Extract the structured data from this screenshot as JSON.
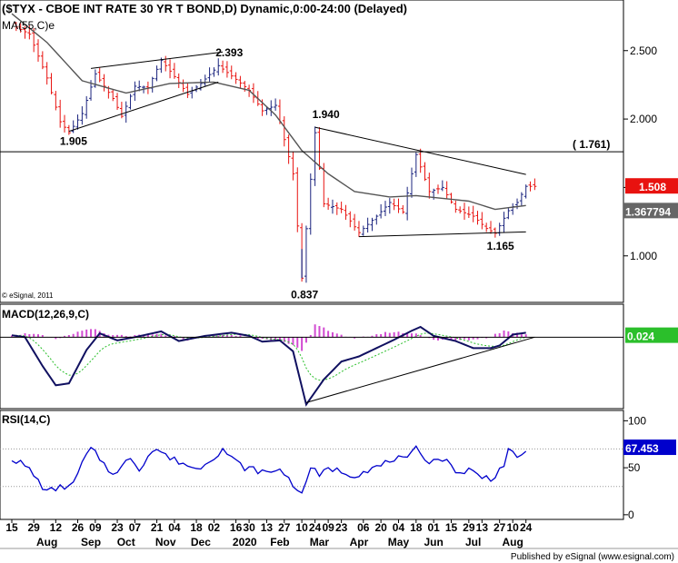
{
  "chart_data": [
    {
      "type": "candlestick",
      "title": "($TYX - CBOE INT RATE 30 YR T BOND,D) Dynamic,0:00-24:00 (Delayed)",
      "ylim": [
        0.66,
        2.87
      ],
      "y_ticks": [
        {
          "v": 2.5,
          "label": "2.500"
        },
        {
          "v": 2.0,
          "label": "2.000"
        },
        {
          "v": 1.5,
          "label": "1.500"
        },
        {
          "v": 1.0,
          "label": "1.000"
        }
      ],
      "ma_label": "MA(55,C)e",
      "watermark": "© eSignal, 2011",
      "last_price": {
        "value": 1.508,
        "label": "1.508",
        "color": "#e8120f"
      },
      "ma_last": {
        "value": 1.367794,
        "label": "1.367794",
        "color": "#666666"
      },
      "resistance_level": {
        "value": 1.761,
        "label": "( 1.761)"
      },
      "annotations": [
        {
          "text": "2.393",
          "index": 47,
          "value": 2.393
        },
        {
          "text": "1.905",
          "index": 13,
          "value": 1.905
        },
        {
          "text": "1.940",
          "index": 69,
          "value": 1.94
        },
        {
          "text": "0.837",
          "index": 66,
          "value": 0.837
        },
        {
          "text": "1.165",
          "index": 111,
          "value": 1.165
        }
      ],
      "trendlines": [
        {
          "from": {
            "index": 13,
            "value": 1.91
          },
          "to": {
            "index": 47,
            "value": 2.27
          }
        },
        {
          "from": {
            "index": 18,
            "value": 2.37
          },
          "to": {
            "index": 48,
            "value": 2.49
          }
        },
        {
          "from": {
            "index": 69,
            "value": 1.94
          },
          "to": {
            "index": 117,
            "value": 1.595
          }
        },
        {
          "from": {
            "index": 79,
            "value": 1.14
          },
          "to": {
            "index": 117,
            "value": 1.175
          }
        }
      ],
      "anchors": [
        [
          0,
          2.69
        ],
        [
          4,
          2.62
        ],
        [
          8,
          2.3
        ],
        [
          11,
          1.98
        ],
        [
          13,
          1.9
        ],
        [
          16,
          2.04
        ],
        [
          19,
          2.33
        ],
        [
          23,
          2.15
        ],
        [
          25,
          2.02
        ],
        [
          28,
          2.24
        ],
        [
          31,
          2.23
        ],
        [
          34,
          2.43
        ],
        [
          37,
          2.31
        ],
        [
          40,
          2.18
        ],
        [
          43,
          2.26
        ],
        [
          47,
          2.39
        ],
        [
          51,
          2.29
        ],
        [
          54,
          2.21
        ],
        [
          57,
          2.06
        ],
        [
          60,
          2.1
        ],
        [
          64,
          1.6
        ],
        [
          66,
          0.837
        ],
        [
          68,
          1.56
        ],
        [
          69,
          1.9
        ],
        [
          71,
          1.38
        ],
        [
          75,
          1.34
        ],
        [
          79,
          1.17
        ],
        [
          83,
          1.29
        ],
        [
          86,
          1.39
        ],
        [
          89,
          1.32
        ],
        [
          92,
          1.74
        ],
        [
          95,
          1.47
        ],
        [
          98,
          1.5
        ],
        [
          101,
          1.34
        ],
        [
          105,
          1.29
        ],
        [
          108,
          1.2
        ],
        [
          110,
          1.165
        ],
        [
          113,
          1.33
        ],
        [
          115,
          1.39
        ],
        [
          117,
          1.508
        ]
      ],
      "ma_anchors": [
        [
          0,
          2.77
        ],
        [
          8,
          2.56
        ],
        [
          16,
          2.28
        ],
        [
          26,
          2.19
        ],
        [
          36,
          2.26
        ],
        [
          46,
          2.27
        ],
        [
          54,
          2.21
        ],
        [
          60,
          2.03
        ],
        [
          66,
          1.77
        ],
        [
          72,
          1.6
        ],
        [
          78,
          1.47
        ],
        [
          86,
          1.43
        ],
        [
          92,
          1.44
        ],
        [
          98,
          1.42
        ],
        [
          104,
          1.4
        ],
        [
          110,
          1.34
        ],
        [
          117,
          1.368
        ]
      ]
    },
    {
      "type": "line",
      "title": "MACD(12,26,9,C)",
      "ylim": [
        -1.1,
        0.5
      ],
      "last": {
        "value": 0.024,
        "label": "0.024",
        "color": "#2bbf2b"
      },
      "macd_anchors": [
        [
          0,
          0.03
        ],
        [
          3,
          0.0
        ],
        [
          7,
          -0.45
        ],
        [
          10,
          -0.75
        ],
        [
          13,
          -0.72
        ],
        [
          17,
          -0.2
        ],
        [
          20,
          0.06
        ],
        [
          24,
          -0.05
        ],
        [
          28,
          0.0
        ],
        [
          34,
          0.09
        ],
        [
          38,
          -0.06
        ],
        [
          44,
          0.02
        ],
        [
          50,
          0.07
        ],
        [
          54,
          0.02
        ],
        [
          57,
          -0.07
        ],
        [
          61,
          -0.05
        ],
        [
          64,
          -0.22
        ],
        [
          67,
          -1.05
        ],
        [
          71,
          -0.66
        ],
        [
          75,
          -0.38
        ],
        [
          79,
          -0.3
        ],
        [
          83,
          -0.17
        ],
        [
          87,
          -0.04
        ],
        [
          91,
          0.1
        ],
        [
          93,
          0.16
        ],
        [
          96,
          0.02
        ],
        [
          101,
          -0.06
        ],
        [
          105,
          -0.17
        ],
        [
          109,
          -0.17
        ],
        [
          111,
          -0.13
        ],
        [
          114,
          0.04
        ],
        [
          117,
          0.07
        ]
      ],
      "hist_anchors": [
        [
          0,
          0.04
        ],
        [
          5,
          0.06
        ],
        [
          10,
          -0.04
        ],
        [
          15,
          0.08
        ],
        [
          18,
          0.14
        ],
        [
          22,
          0.03
        ],
        [
          28,
          0.02
        ],
        [
          34,
          0.05
        ],
        [
          40,
          -0.04
        ],
        [
          46,
          0.04
        ],
        [
          52,
          0.02
        ],
        [
          58,
          -0.04
        ],
        [
          62,
          -0.06
        ],
        [
          64,
          -0.13
        ],
        [
          66,
          -0.22
        ],
        [
          68,
          0.02
        ],
        [
          69,
          0.2
        ],
        [
          71,
          0.14
        ],
        [
          74,
          0.06
        ],
        [
          78,
          -0.03
        ],
        [
          82,
          0.03
        ],
        [
          86,
          0.08
        ],
        [
          90,
          0.07
        ],
        [
          93,
          0.04
        ],
        [
          96,
          -0.04
        ],
        [
          100,
          -0.05
        ],
        [
          104,
          -0.04
        ],
        [
          108,
          -0.01
        ],
        [
          112,
          0.1
        ],
        [
          115,
          0.06
        ],
        [
          117,
          0.05
        ]
      ],
      "trendline": {
        "from": {
          "index": 67,
          "value": -1.02
        },
        "to": {
          "index": 119,
          "value": 0.0
        }
      }
    },
    {
      "type": "line",
      "title": "RSI(14,C)",
      "ylim": [
        -4,
        110
      ],
      "y_ticks": [
        {
          "v": 100,
          "label": "100"
        },
        {
          "v": 50,
          "label": "50"
        },
        {
          "v": 0,
          "label": "0"
        }
      ],
      "levels": [
        70,
        30
      ],
      "last": {
        "value": 67.453,
        "label": "67.453",
        "color": "#0000cc"
      },
      "rsi_anchors": [
        [
          0,
          60
        ],
        [
          2,
          55
        ],
        [
          4,
          48
        ],
        [
          6,
          36
        ],
        [
          8,
          24
        ],
        [
          10,
          28
        ],
        [
          12,
          30
        ],
        [
          14,
          32
        ],
        [
          16,
          55
        ],
        [
          18,
          70
        ],
        [
          20,
          60
        ],
        [
          22,
          48
        ],
        [
          24,
          44
        ],
        [
          27,
          62
        ],
        [
          29,
          48
        ],
        [
          31,
          64
        ],
        [
          33,
          70
        ],
        [
          36,
          60
        ],
        [
          39,
          55
        ],
        [
          42,
          48
        ],
        [
          46,
          62
        ],
        [
          48,
          70
        ],
        [
          50,
          60
        ],
        [
          53,
          50
        ],
        [
          56,
          47
        ],
        [
          59,
          44
        ],
        [
          61,
          50
        ],
        [
          63,
          38
        ],
        [
          65,
          28
        ],
        [
          66,
          20
        ],
        [
          68,
          52
        ],
        [
          70,
          40
        ],
        [
          72,
          50
        ],
        [
          75,
          46
        ],
        [
          78,
          42
        ],
        [
          81,
          48
        ],
        [
          84,
          52
        ],
        [
          87,
          60
        ],
        [
          90,
          58
        ],
        [
          92,
          70
        ],
        [
          95,
          57
        ],
        [
          98,
          60
        ],
        [
          100,
          52
        ],
        [
          102,
          44
        ],
        [
          104,
          48
        ],
        [
          107,
          40
        ],
        [
          109,
          39
        ],
        [
          110,
          42
        ],
        [
          112,
          54
        ],
        [
          113,
          70
        ],
        [
          115,
          58
        ],
        [
          117,
          67.453
        ]
      ]
    }
  ],
  "x_axis": {
    "day_labels": [
      {
        "index": 0,
        "label": "15"
      },
      {
        "index": 5,
        "label": "29"
      },
      {
        "index": 10,
        "label": "12"
      },
      {
        "index": 15,
        "label": "26"
      },
      {
        "index": 19,
        "label": "09"
      },
      {
        "index": 24,
        "label": "23"
      },
      {
        "index": 28,
        "label": "07"
      },
      {
        "index": 33,
        "label": "21"
      },
      {
        "index": 37,
        "label": "04"
      },
      {
        "index": 42,
        "label": "18"
      },
      {
        "index": 46,
        "label": "02"
      },
      {
        "index": 51,
        "label": "16"
      },
      {
        "index": 54,
        "label": "30"
      },
      {
        "index": 58,
        "label": "13"
      },
      {
        "index": 62,
        "label": "27"
      },
      {
        "index": 66,
        "label": "10"
      },
      {
        "index": 69,
        "label": "24"
      },
      {
        "index": 72,
        "label": "09"
      },
      {
        "index": 75,
        "label": "23"
      },
      {
        "index": 80,
        "label": "06"
      },
      {
        "index": 84,
        "label": "20"
      },
      {
        "index": 88,
        "label": "04"
      },
      {
        "index": 92,
        "label": "18"
      },
      {
        "index": 96,
        "label": "01"
      },
      {
        "index": 100,
        "label": "15"
      },
      {
        "index": 104,
        "label": "29"
      },
      {
        "index": 107,
        "label": "13"
      },
      {
        "index": 111,
        "label": "27"
      },
      {
        "index": 114,
        "label": "10"
      },
      {
        "index": 117,
        "label": "24"
      }
    ],
    "month_labels": [
      {
        "index": 8,
        "label": "Aug"
      },
      {
        "index": 18,
        "label": "Sep"
      },
      {
        "index": 26,
        "label": "Oct"
      },
      {
        "index": 35,
        "label": "Nov"
      },
      {
        "index": 43,
        "label": "Dec"
      },
      {
        "index": 53,
        "label": "2020"
      },
      {
        "index": 61,
        "label": "Feb"
      },
      {
        "index": 70,
        "label": "Mar"
      },
      {
        "index": 79,
        "label": "Apr"
      },
      {
        "index": 88,
        "label": "May"
      },
      {
        "index": 96,
        "label": "Jun"
      },
      {
        "index": 105,
        "label": "Jul"
      },
      {
        "index": 114,
        "label": "Aug"
      }
    ]
  },
  "footer": "Published by eSignal (www.esignal.com)"
}
